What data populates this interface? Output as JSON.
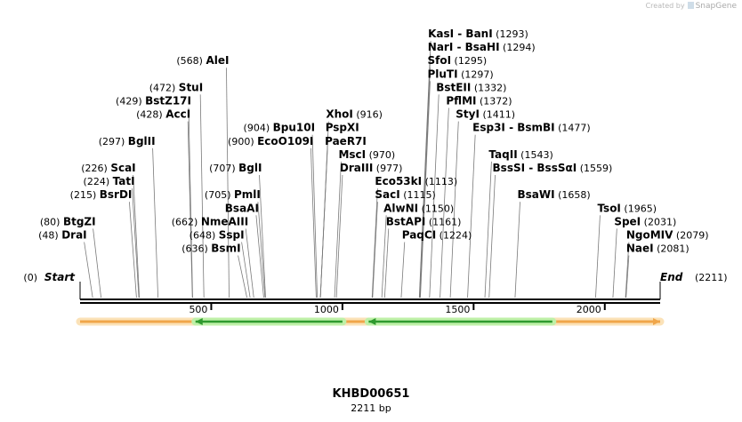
{
  "credit": {
    "prefix": "Created by",
    "brand": "SnapGene"
  },
  "map": {
    "name": "KHBD00651",
    "length_label": "2211 bp",
    "length": 2211,
    "start_label": "Start",
    "end_label": "End",
    "start_position": "(0)",
    "end_position": "(2211)",
    "ticks": [
      {
        "value": 500,
        "label": "500"
      },
      {
        "value": 1000,
        "label": "1000"
      },
      {
        "value": 1500,
        "label": "1500"
      },
      {
        "value": 2000,
        "label": "2000"
      }
    ],
    "features": [
      {
        "name": "backbone-arrow",
        "start": 0,
        "end": 2211,
        "direction": "forward",
        "color": "#f0a64a",
        "glow": "#fbe2b8"
      },
      {
        "name": "orf-left",
        "start": 440,
        "end": 1000,
        "direction": "reverse",
        "color": "#2e9a2e",
        "glow": "#bff0a8"
      },
      {
        "name": "orf-right",
        "start": 1100,
        "end": 1800,
        "direction": "reverse",
        "color": "#2e9a2e",
        "glow": "#bff0a8"
      }
    ]
  },
  "sites": [
    {
      "enzyme": "DraI",
      "position": 48,
      "pos_label": "(48)",
      "side": "left",
      "row": 15
    },
    {
      "enzyme": "BtgZI",
      "position": 80,
      "pos_label": "(80)",
      "side": "left",
      "row": 14
    },
    {
      "enzyme": "BsrDI",
      "position": 215,
      "pos_label": "(215)",
      "side": "left",
      "row": 12
    },
    {
      "enzyme": "TatI",
      "position": 224,
      "pos_label": "(224)",
      "side": "left",
      "row": 11
    },
    {
      "enzyme": "ScaI",
      "position": 226,
      "pos_label": "(226)",
      "side": "left",
      "row": 10
    },
    {
      "enzyme": "BglII",
      "position": 297,
      "pos_label": "(297)",
      "side": "left",
      "row": 8
    },
    {
      "enzyme": "AccI",
      "position": 428,
      "pos_label": "(428)",
      "side": "left",
      "row": 6
    },
    {
      "enzyme": "BstZ17I",
      "position": 429,
      "pos_label": "(429)",
      "side": "left",
      "row": 5
    },
    {
      "enzyme": "StuI",
      "position": 472,
      "pos_label": "(472)",
      "side": "left",
      "row": 4
    },
    {
      "enzyme": "AleI",
      "position": 568,
      "pos_label": "(568)",
      "side": "left",
      "row": 2
    },
    {
      "enzyme": "BsmI",
      "position": 636,
      "pos_label": "(636)",
      "side": "left",
      "row": 16
    },
    {
      "enzyme": "SspI",
      "position": 648,
      "pos_label": "(648)",
      "side": "left",
      "row": 15
    },
    {
      "enzyme": "NmeAIII",
      "position": 662,
      "pos_label": "(662)",
      "side": "left",
      "row": 14
    },
    {
      "enzyme": "BsaAI",
      "position": 700,
      "pos_label": "",
      "side": "left",
      "row": 13
    },
    {
      "enzyme": "PmlI",
      "position": 705,
      "pos_label": "(705)",
      "side": "left",
      "row": 12
    },
    {
      "enzyme": "BglI",
      "position": 707,
      "pos_label": "(707)",
      "side": "left",
      "row": 10
    },
    {
      "enzyme": "EcoO109I",
      "position": 900,
      "pos_label": "(900)",
      "side": "left",
      "row": 8
    },
    {
      "enzyme": "Bpu10I",
      "position": 904,
      "pos_label": "(904)",
      "side": "left",
      "row": 7
    },
    {
      "enzyme": "XhoI",
      "position": 916,
      "pos_label": "(916)",
      "side": "right",
      "row": 6
    },
    {
      "enzyme": "PspXI",
      "position": 916,
      "pos_label": "",
      "side": "right",
      "row": 7
    },
    {
      "enzyme": "PaeR7I",
      "position": 916,
      "pos_label": "",
      "side": "right",
      "row": 8
    },
    {
      "enzyme": "MscI",
      "position": 970,
      "pos_label": "(970)",
      "side": "right",
      "row": 9
    },
    {
      "enzyme": "DraIII",
      "position": 977,
      "pos_label": "(977)",
      "side": "right",
      "row": 10
    },
    {
      "enzyme": "Eco53kI",
      "position": 1113,
      "pos_label": "(1113)",
      "side": "right",
      "row": 11
    },
    {
      "enzyme": "SacI",
      "position": 1115,
      "pos_label": "(1115)",
      "side": "right",
      "row": 12
    },
    {
      "enzyme": "AlwNI",
      "position": 1150,
      "pos_label": "(1150)",
      "side": "right",
      "row": 13
    },
    {
      "enzyme": "BstAPI",
      "position": 1161,
      "pos_label": "(1161)",
      "side": "right",
      "row": 14
    },
    {
      "enzyme": "PaqCI",
      "position": 1224,
      "pos_label": "(1224)",
      "side": "right",
      "row": 15
    },
    {
      "enzyme": "KasI - BanI",
      "position": 1293,
      "pos_label": "(1293)",
      "side": "right",
      "row": 0
    },
    {
      "enzyme": "NarI - BsaHI",
      "position": 1294,
      "pos_label": "(1294)",
      "side": "right",
      "row": 1
    },
    {
      "enzyme": "SfoI",
      "position": 1295,
      "pos_label": "(1295)",
      "side": "right",
      "row": 2
    },
    {
      "enzyme": "PluTI",
      "position": 1297,
      "pos_label": "(1297)",
      "side": "right",
      "row": 3
    },
    {
      "enzyme": "BstEII",
      "position": 1332,
      "pos_label": "(1332)",
      "side": "right",
      "row": 4
    },
    {
      "enzyme": "PflMI",
      "position": 1372,
      "pos_label": "(1372)",
      "side": "right",
      "row": 5
    },
    {
      "enzyme": "StyI",
      "position": 1411,
      "pos_label": "(1411)",
      "side": "right",
      "row": 6
    },
    {
      "enzyme": "Esp3I - BsmBI",
      "position": 1477,
      "pos_label": "(1477)",
      "side": "right",
      "row": 7
    },
    {
      "enzyme": "TaqII",
      "position": 1543,
      "pos_label": "(1543)",
      "side": "right",
      "row": 9
    },
    {
      "enzyme": "BssSI - BssSαI",
      "position": 1559,
      "pos_label": "(1559)",
      "side": "right",
      "row": 10
    },
    {
      "enzyme": "BsaWI",
      "position": 1658,
      "pos_label": "(1658)",
      "side": "right",
      "row": 12
    },
    {
      "enzyme": "TsoI",
      "position": 1965,
      "pos_label": "(1965)",
      "side": "right",
      "row": 13
    },
    {
      "enzyme": "SpeI",
      "position": 2031,
      "pos_label": "(2031)",
      "side": "right",
      "row": 14
    },
    {
      "enzyme": "NgoMIV",
      "position": 2079,
      "pos_label": "(2079)",
      "side": "right",
      "row": 15
    },
    {
      "enzyme": "NaeI",
      "position": 2081,
      "pos_label": "(2081)",
      "side": "right",
      "row": 16
    }
  ]
}
